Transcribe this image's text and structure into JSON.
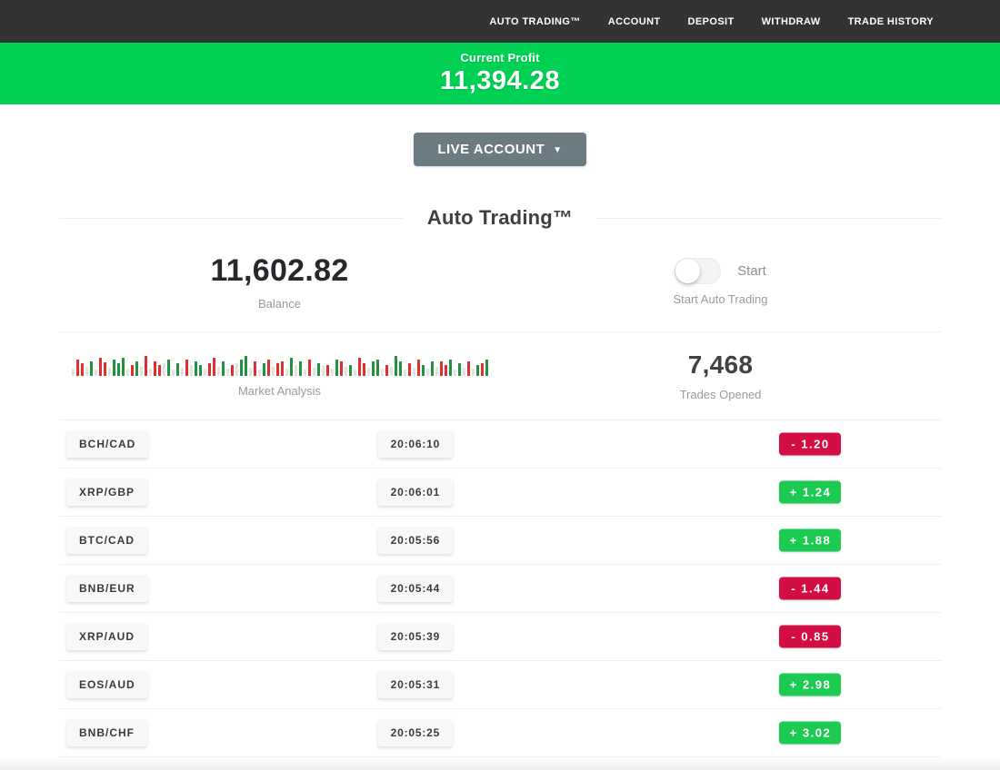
{
  "nav": {
    "items": [
      {
        "label": "AUTO TRADING™"
      },
      {
        "label": "ACCOUNT"
      },
      {
        "label": "DEPOSIT"
      },
      {
        "label": "WITHDRAW"
      },
      {
        "label": "TRADE HISTORY"
      }
    ]
  },
  "profit_banner": {
    "label": "Current Profit",
    "value": "11,394.28"
  },
  "account_selector": {
    "label": "LIVE ACCOUNT",
    "caret": "▼"
  },
  "section": {
    "title": "Auto Trading™"
  },
  "stats": {
    "balance": {
      "value": "11,602.82",
      "label": "Balance"
    },
    "auto_trading": {
      "toggle_text": "Start",
      "label": "Start Auto Trading",
      "state": "off"
    },
    "market_analysis": {
      "label": "Market Analysis",
      "bars": [
        "n8",
        "r18",
        "r14",
        "n10",
        "g16",
        "n7",
        "r20",
        "r15",
        "n9",
        "g18",
        "g14",
        "g20",
        "n8",
        "r12",
        "g16",
        "n10",
        "r22",
        "n8",
        "r16",
        "r12",
        "n14",
        "g18",
        "n7",
        "g14",
        "n9",
        "r18",
        "n12",
        "g16",
        "g12",
        "n8",
        "r14",
        "r20",
        "n10",
        "g16",
        "n8",
        "r12",
        "n14",
        "g18",
        "g22",
        "n9",
        "r16",
        "n7",
        "g14",
        "r18",
        "n10",
        "r14",
        "r16",
        "n8",
        "g20",
        "n12",
        "g16",
        "n7",
        "r18",
        "n9",
        "g14",
        "n11",
        "r12",
        "n8",
        "g18",
        "r16",
        "n10",
        "g12",
        "n7",
        "r20",
        "r14",
        "n9",
        "g16",
        "g18",
        "n8",
        "r12",
        "n10",
        "g22",
        "g16",
        "n7",
        "r14",
        "n9",
        "r18",
        "g12",
        "n8",
        "g16",
        "n10",
        "r16",
        "r12",
        "g18",
        "n7",
        "g14",
        "n9",
        "r16",
        "n8",
        "g12",
        "r14",
        "g18"
      ]
    },
    "trades_opened": {
      "value": "7,468",
      "label": "Trades Opened"
    }
  },
  "trades": [
    {
      "pair": "BCH/CAD",
      "time": "20:06:10",
      "result": "-  1.20",
      "direction": "loss"
    },
    {
      "pair": "XRP/GBP",
      "time": "20:06:01",
      "result": "+  1.24",
      "direction": "profit"
    },
    {
      "pair": "BTC/CAD",
      "time": "20:05:56",
      "result": "+  1.88",
      "direction": "profit"
    },
    {
      "pair": "BNB/EUR",
      "time": "20:05:44",
      "result": "-  1.44",
      "direction": "loss"
    },
    {
      "pair": "XRP/AUD",
      "time": "20:05:39",
      "result": "-  0.85",
      "direction": "loss"
    },
    {
      "pair": "EOS/AUD",
      "time": "20:05:31",
      "result": "+  2.98",
      "direction": "profit"
    },
    {
      "pair": "BNB/CHF",
      "time": "20:05:25",
      "result": "+  3.02",
      "direction": "profit"
    }
  ],
  "colors": {
    "navbar_bg": "#333333",
    "banner_green": "#00d053",
    "badge_green": "#1dcb53",
    "badge_red": "#d30e44",
    "button_gray": "#6c7a82",
    "bar_red": "#e12f2f",
    "bar_green": "#22923f",
    "bar_gray": "#e3e3e3"
  }
}
